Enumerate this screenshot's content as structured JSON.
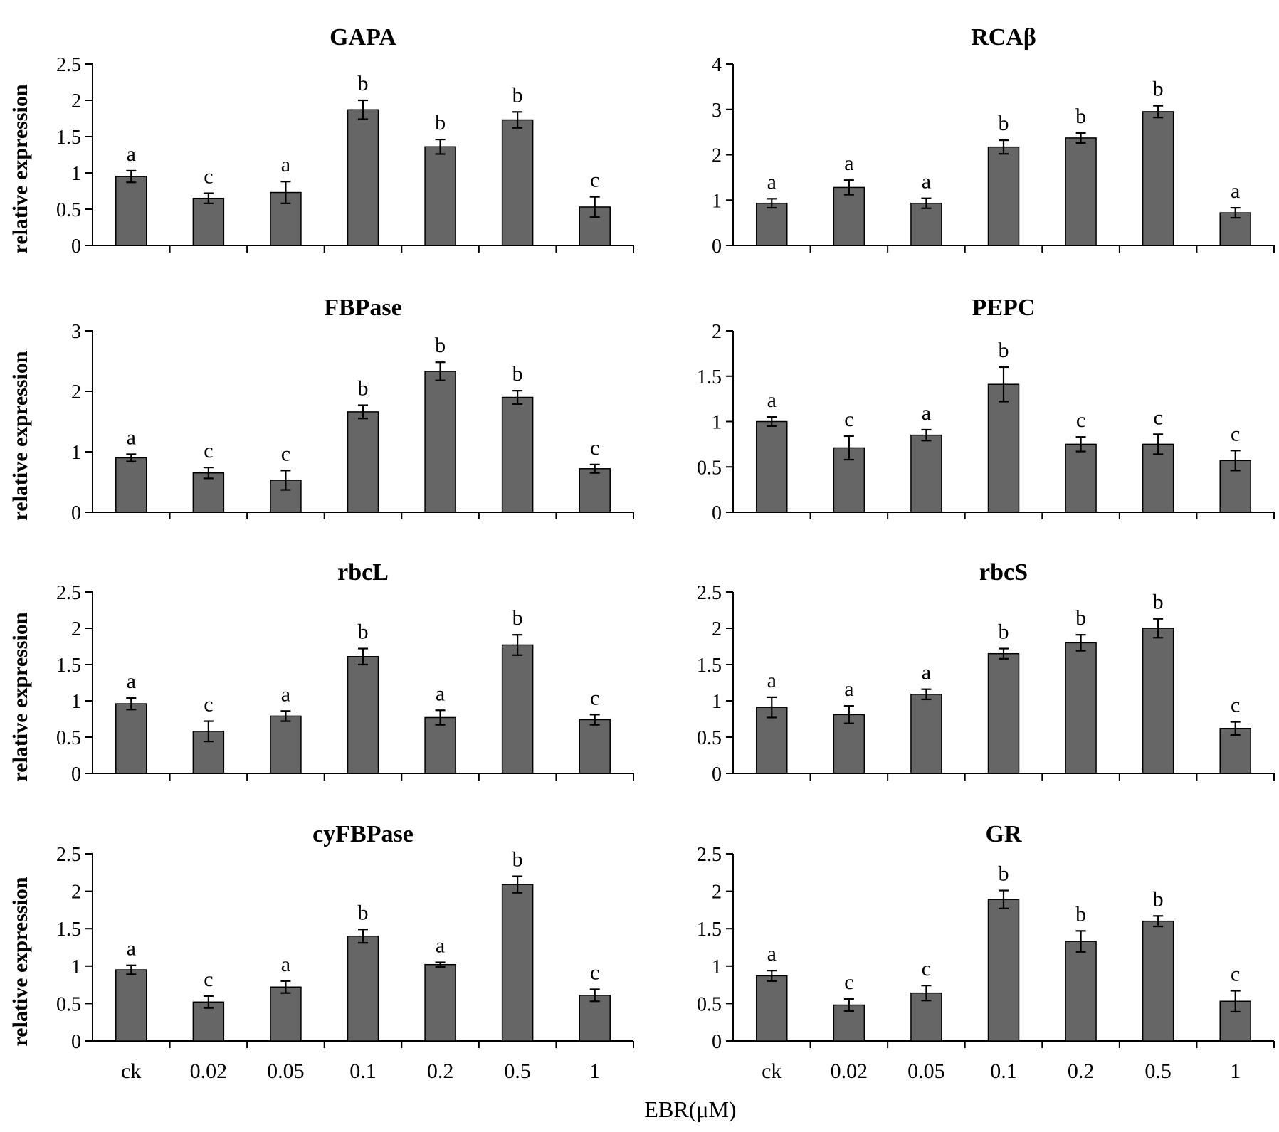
{
  "figure": {
    "x_axis_label": "EBR(μM)",
    "y_axis_label": "relative expression"
  },
  "chart_data": [
    {
      "type": "bar",
      "title": "GAPA",
      "ylabel": "relative expression",
      "categories": [
        "ck",
        "0.02",
        "0.05",
        "0.1",
        "0.2",
        "0.5",
        "1"
      ],
      "show_x_tick_labels": false,
      "ylim": [
        0,
        2.5
      ],
      "yticks": [
        "0",
        "0.5",
        "1",
        "1.5",
        "2",
        "2.5"
      ],
      "values": [
        0.95,
        0.65,
        0.73,
        1.87,
        1.36,
        1.73,
        0.53
      ],
      "errors": [
        0.08,
        0.07,
        0.15,
        0.13,
        0.1,
        0.11,
        0.14
      ],
      "significance": [
        "a",
        "c",
        "a",
        "b",
        "b",
        "b",
        "c"
      ],
      "bar_color": "#666666",
      "grid": false
    },
    {
      "type": "bar",
      "title": "RCAβ",
      "ylabel": "",
      "categories": [
        "ck",
        "0.02",
        "0.05",
        "0.1",
        "0.2",
        "0.5",
        "1"
      ],
      "show_x_tick_labels": false,
      "ylim": [
        0,
        4
      ],
      "yticks": [
        "0",
        "1",
        "2",
        "3",
        "4"
      ],
      "values": [
        0.93,
        1.28,
        0.93,
        2.17,
        2.37,
        2.95,
        0.72
      ],
      "errors": [
        0.1,
        0.16,
        0.11,
        0.15,
        0.11,
        0.13,
        0.11
      ],
      "significance": [
        "a",
        "a",
        "a",
        "b",
        "b",
        "b",
        "a"
      ],
      "bar_color": "#666666",
      "grid": false
    },
    {
      "type": "bar",
      "title": "FBPase",
      "ylabel": "relative expression",
      "categories": [
        "ck",
        "0.02",
        "0.05",
        "0.1",
        "0.2",
        "0.5",
        "1"
      ],
      "show_x_tick_labels": false,
      "ylim": [
        0,
        3
      ],
      "yticks": [
        "0",
        "1",
        "2",
        "3"
      ],
      "values": [
        0.9,
        0.65,
        0.53,
        1.66,
        2.33,
        1.9,
        0.72
      ],
      "errors": [
        0.06,
        0.09,
        0.16,
        0.11,
        0.15,
        0.11,
        0.07
      ],
      "significance": [
        "a",
        "c",
        "c",
        "b",
        "b",
        "b",
        "c"
      ],
      "bar_color": "#666666",
      "grid": false
    },
    {
      "type": "bar",
      "title": "PEPC",
      "ylabel": "",
      "categories": [
        "ck",
        "0.02",
        "0.05",
        "0.1",
        "0.2",
        "0.5",
        "1"
      ],
      "show_x_tick_labels": false,
      "ylim": [
        0,
        2
      ],
      "yticks": [
        "0",
        "0.5",
        "1",
        "1.5",
        "2"
      ],
      "values": [
        1.0,
        0.71,
        0.85,
        1.41,
        0.75,
        0.75,
        0.57
      ],
      "errors": [
        0.05,
        0.13,
        0.06,
        0.19,
        0.08,
        0.11,
        0.11
      ],
      "significance": [
        "a",
        "c",
        "a",
        "b",
        "c",
        "c",
        "c"
      ],
      "bar_color": "#666666",
      "grid": false
    },
    {
      "type": "bar",
      "title": "rbcL",
      "ylabel": "relative expression",
      "categories": [
        "ck",
        "0.02",
        "0.05",
        "0.1",
        "0.2",
        "0.5",
        "1"
      ],
      "show_x_tick_labels": false,
      "ylim": [
        0,
        2.5
      ],
      "yticks": [
        "0",
        "0.5",
        "1",
        "1.5",
        "2",
        "2.5"
      ],
      "values": [
        0.96,
        0.58,
        0.79,
        1.61,
        0.77,
        1.77,
        0.74
      ],
      "errors": [
        0.08,
        0.14,
        0.07,
        0.11,
        0.1,
        0.14,
        0.07
      ],
      "significance": [
        "a",
        "c",
        "a",
        "b",
        "a",
        "b",
        "c"
      ],
      "bar_color": "#666666",
      "grid": false
    },
    {
      "type": "bar",
      "title": "rbcS",
      "ylabel": "",
      "categories": [
        "ck",
        "0.02",
        "0.05",
        "0.1",
        "0.2",
        "0.5",
        "1"
      ],
      "show_x_tick_labels": false,
      "ylim": [
        0,
        2.5
      ],
      "yticks": [
        "0",
        "0.5",
        "1",
        "1.5",
        "2",
        "2.5"
      ],
      "values": [
        0.91,
        0.81,
        1.09,
        1.65,
        1.8,
        2.0,
        0.62
      ],
      "errors": [
        0.14,
        0.12,
        0.07,
        0.07,
        0.11,
        0.13,
        0.09
      ],
      "significance": [
        "a",
        "a",
        "a",
        "b",
        "b",
        "b",
        "c"
      ],
      "bar_color": "#666666",
      "grid": false
    },
    {
      "type": "bar",
      "title": "cyFBPase",
      "ylabel": "relative expression",
      "categories": [
        "ck",
        "0.02",
        "0.05",
        "0.1",
        "0.2",
        "0.5",
        "1"
      ],
      "show_x_tick_labels": true,
      "ylim": [
        0,
        2.5
      ],
      "yticks": [
        "0",
        "0.5",
        "1",
        "1.5",
        "2",
        "2.5"
      ],
      "values": [
        0.95,
        0.52,
        0.72,
        1.4,
        1.02,
        2.09,
        0.61
      ],
      "errors": [
        0.06,
        0.08,
        0.08,
        0.09,
        0.03,
        0.11,
        0.08
      ],
      "significance": [
        "a",
        "c",
        "a",
        "b",
        "a",
        "b",
        "c"
      ],
      "bar_color": "#666666",
      "grid": false
    },
    {
      "type": "bar",
      "title": "GR",
      "ylabel": "",
      "categories": [
        "ck",
        "0.02",
        "0.05",
        "0.1",
        "0.2",
        "0.5",
        "1"
      ],
      "show_x_tick_labels": true,
      "ylim": [
        0,
        2.5
      ],
      "yticks": [
        "0",
        "0.5",
        "1",
        "1.5",
        "2",
        "2.5"
      ],
      "values": [
        0.87,
        0.48,
        0.64,
        1.89,
        1.33,
        1.6,
        0.53
      ],
      "errors": [
        0.07,
        0.08,
        0.1,
        0.12,
        0.14,
        0.07,
        0.14
      ],
      "significance": [
        "a",
        "c",
        "c",
        "b",
        "b",
        "b",
        "c"
      ],
      "bar_color": "#666666",
      "grid": false
    }
  ]
}
